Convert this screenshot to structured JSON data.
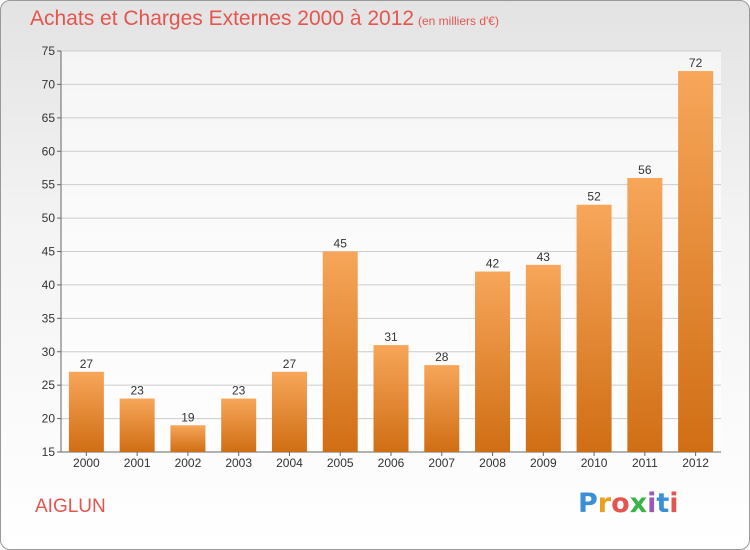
{
  "title": "Achats et Charges Externes 2000 à 2012",
  "subtitle": "(en milliers d'€)",
  "place": "AIGLUN",
  "logo": {
    "letters": [
      "P",
      "r",
      "o",
      "x",
      "i",
      "t",
      "i"
    ]
  },
  "colors": {
    "bar_top": "#f7a65a",
    "bar_bottom": "#d06e14",
    "title": "#e5554f",
    "grid": "#cccccc"
  },
  "chart_data": {
    "type": "bar",
    "categories": [
      "2000",
      "2001",
      "2002",
      "2003",
      "2004",
      "2005",
      "2006",
      "2007",
      "2008",
      "2009",
      "2010",
      "2011",
      "2012"
    ],
    "values": [
      27,
      23,
      19,
      23,
      27,
      45,
      31,
      28,
      42,
      43,
      52,
      56,
      72
    ],
    "title": "Achats et Charges Externes 2000 à 2012",
    "xlabel": "",
    "ylabel": "",
    "ylim": [
      15,
      75
    ],
    "yticks": [
      15,
      20,
      25,
      30,
      35,
      40,
      45,
      50,
      55,
      60,
      65,
      70,
      75
    ],
    "grid": true,
    "data_labels": true
  }
}
